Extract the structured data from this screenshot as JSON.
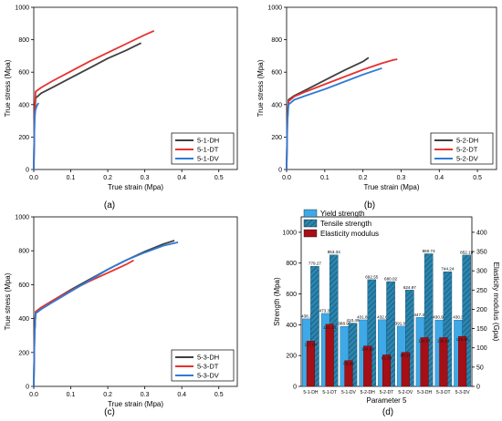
{
  "chart_data": [
    {
      "type": "line",
      "panel_label": "(a)",
      "xlabel": "True strain (Mpa)",
      "ylabel": "True stress (Mpa)",
      "xlim": [
        0,
        0.55
      ],
      "ylim": [
        0,
        1000
      ],
      "x_ticks": [
        "0.0",
        "0.1",
        "0.2",
        "0.3",
        "0.4",
        "0.5"
      ],
      "y_ticks": [
        "0",
        "200",
        "400",
        "600",
        "800",
        "1000"
      ],
      "legend_position": "bottom-right",
      "series": [
        {
          "name": "5-1-DH",
          "color": "#404040",
          "x": [
            0,
            0.002,
            0.005,
            0.02,
            0.05,
            0.1,
            0.15,
            0.2,
            0.25,
            0.29
          ],
          "y": [
            0,
            300,
            440,
            470,
            505,
            565,
            625,
            685,
            735,
            780
          ]
        },
        {
          "name": "5-1-DT",
          "color": "#e8312f",
          "x": [
            0,
            0.002,
            0.005,
            0.02,
            0.05,
            0.1,
            0.15,
            0.2,
            0.25,
            0.3,
            0.325
          ],
          "y": [
            0,
            320,
            480,
            505,
            545,
            605,
            665,
            720,
            775,
            830,
            855
          ]
        },
        {
          "name": "5-1-DV",
          "color": "#2f7bd6",
          "x": [
            0,
            0.001,
            0.002,
            0.004,
            0.007,
            0.01,
            0.013
          ],
          "y": [
            0,
            150,
            300,
            360,
            385,
            400,
            410
          ]
        }
      ]
    },
    {
      "type": "line",
      "panel_label": "(b)",
      "xlabel": "True strain (Mpa)",
      "ylabel": "True stress (Mpa)",
      "xlim": [
        0,
        0.55
      ],
      "ylim": [
        0,
        1000
      ],
      "x_ticks": [
        "0.0",
        "0.1",
        "0.2",
        "0.3",
        "0.4",
        "0.5"
      ],
      "y_ticks": [
        "0",
        "200",
        "400",
        "600",
        "800",
        "1000"
      ],
      "legend_position": "bottom-right",
      "series": [
        {
          "name": "5-2-DH",
          "color": "#404040",
          "x": [
            0,
            0.002,
            0.005,
            0.02,
            0.05,
            0.1,
            0.15,
            0.2,
            0.215
          ],
          "y": [
            0,
            300,
            430,
            455,
            490,
            550,
            610,
            665,
            690
          ]
        },
        {
          "name": "5-2-DT",
          "color": "#e8312f",
          "x": [
            0,
            0.002,
            0.005,
            0.02,
            0.05,
            0.1,
            0.15,
            0.2,
            0.25,
            0.28,
            0.29
          ],
          "y": [
            0,
            300,
            420,
            450,
            480,
            525,
            570,
            615,
            655,
            675,
            680
          ]
        },
        {
          "name": "5-2-DV",
          "color": "#2f7bd6",
          "x": [
            0,
            0.002,
            0.005,
            0.02,
            0.05,
            0.1,
            0.15,
            0.2,
            0.25
          ],
          "y": [
            0,
            280,
            400,
            430,
            455,
            495,
            540,
            585,
            625
          ]
        }
      ]
    },
    {
      "type": "line",
      "panel_label": "(c)",
      "xlabel": "True strain (Mpa)",
      "ylabel": "True stress (Mpa)",
      "xlim": [
        0,
        0.55
      ],
      "ylim": [
        0,
        1000
      ],
      "x_ticks": [
        "0.0",
        "0.1",
        "0.2",
        "0.3",
        "0.4",
        "0.5"
      ],
      "y_ticks": [
        "0",
        "200",
        "400",
        "600",
        "800",
        "1000"
      ],
      "legend_position": "bottom-right",
      "series": [
        {
          "name": "5-3-DH",
          "color": "#404040",
          "x": [
            0,
            0.002,
            0.005,
            0.02,
            0.05,
            0.1,
            0.15,
            0.2,
            0.25,
            0.3,
            0.35,
            0.38
          ],
          "y": [
            0,
            300,
            440,
            465,
            505,
            570,
            630,
            690,
            745,
            795,
            840,
            860
          ]
        },
        {
          "name": "5-3-DT",
          "color": "#e8312f",
          "x": [
            0,
            0.002,
            0.005,
            0.02,
            0.05,
            0.1,
            0.15,
            0.2,
            0.25,
            0.27
          ],
          "y": [
            0,
            300,
            440,
            465,
            505,
            565,
            620,
            670,
            720,
            744
          ]
        },
        {
          "name": "5-3-DV",
          "color": "#2f7bd6",
          "x": [
            0,
            0.002,
            0.005,
            0.02,
            0.05,
            0.1,
            0.15,
            0.2,
            0.25,
            0.3,
            0.35,
            0.39
          ],
          "y": [
            0,
            290,
            430,
            455,
            495,
            560,
            625,
            690,
            745,
            790,
            830,
            850
          ]
        }
      ]
    },
    {
      "type": "bar",
      "panel_label": "(d)",
      "xlabel": "Parameter 5",
      "ylabel": "Strength (Mpa)",
      "ylabel_right": "Elasticity modulus (Gpa)",
      "ylim": [
        0,
        1100
      ],
      "ylim_right": [
        0,
        440
      ],
      "y_ticks": [
        "0",
        "200",
        "400",
        "600",
        "800",
        "1000"
      ],
      "y_ticks_right": [
        "0",
        "50",
        "100",
        "150",
        "200",
        "250",
        "300",
        "350",
        "400"
      ],
      "legend_position": "top-left",
      "categories": [
        "5-1-DH",
        "5-1-DT",
        "5-1-DV",
        "5-2-DH",
        "5-2-DT",
        "5-2-DV",
        "5-3-DH",
        "5-3-DT",
        "5-3-DV"
      ],
      "series": [
        {
          "name": "Yield strength",
          "axis": "left",
          "color": "#3ea9e6",
          "values": [
            438.3,
            473.39,
            388.95,
            431.87,
            432.6,
            391.08,
            447.39,
            430.94,
            430.3
          ],
          "labels": [
            "438.3",
            "473.39",
            "388.95",
            "431.87",
            "432.6",
            "391.08",
            "447.39",
            "430.94",
            "430.3"
          ]
        },
        {
          "name": "Tensile strength",
          "axis": "left",
          "color": "#2380a8",
          "hatched": true,
          "values": [
            779.27,
            853.34,
            410.49,
            692.55,
            680.02,
            624.97,
            860.74,
            744.24,
            852.19
          ],
          "labels": [
            "779.27",
            "853.34",
            "410.49",
            "692.55",
            "680.02",
            "624.97",
            "860.74",
            "744.24",
            "852.19"
          ]
        },
        {
          "name": "Elasticity modulus",
          "axis": "right",
          "color": "#a50f15",
          "values": [
            117.64,
            161.14,
            66.98,
            104.89,
            81.68,
            88.16,
            126.61,
            126.61,
            129.66
          ],
          "labels": [
            "117.64",
            "161.14",
            "66.98",
            "104.89",
            "81.68",
            "88.16",
            "126.61",
            "126.61",
            "129.66"
          ]
        }
      ]
    }
  ]
}
